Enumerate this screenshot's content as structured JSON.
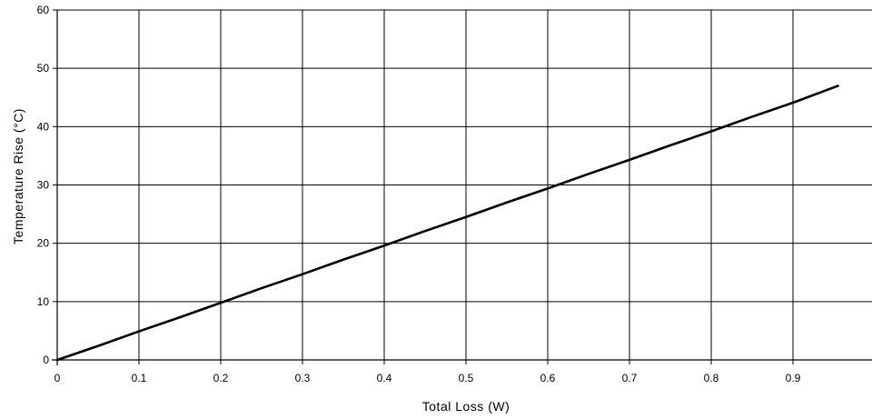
{
  "chart_data": {
    "type": "line",
    "title": "",
    "xlabel": "Total Loss (W)",
    "ylabel": "Temperature Rise (°C)",
    "xlim": [
      0,
      1.0
    ],
    "ylim": [
      0,
      60
    ],
    "x_ticks": [
      0,
      0.1,
      0.2,
      0.3,
      0.4,
      0.5,
      0.6,
      0.7,
      0.8,
      0.9
    ],
    "x_tick_labels": [
      "0",
      "0.1",
      "0.2",
      "0.3",
      "0.4",
      "0.5",
      "0.6",
      "0.7",
      "0.8",
      "0.9"
    ],
    "y_ticks": [
      0,
      10,
      20,
      30,
      40,
      50,
      60
    ],
    "y_tick_labels": [
      "0",
      "10",
      "20",
      "30",
      "40",
      "50",
      "60"
    ],
    "grid": true,
    "line_color": "#000000",
    "series": [
      {
        "x": [
          0,
          0.05,
          0.1,
          0.15,
          0.2,
          0.25,
          0.3,
          0.35,
          0.4,
          0.45,
          0.5,
          0.55,
          0.6,
          0.65,
          0.7,
          0.75,
          0.8,
          0.85,
          0.9,
          0.955
        ],
        "values": [
          0,
          2.4,
          4.9,
          7.3,
          9.8,
          12.3,
          14.7,
          17.2,
          19.6,
          22.1,
          24.5,
          27.0,
          29.4,
          31.9,
          34.3,
          36.8,
          39.2,
          41.7,
          44.1,
          47.0
        ]
      }
    ]
  }
}
